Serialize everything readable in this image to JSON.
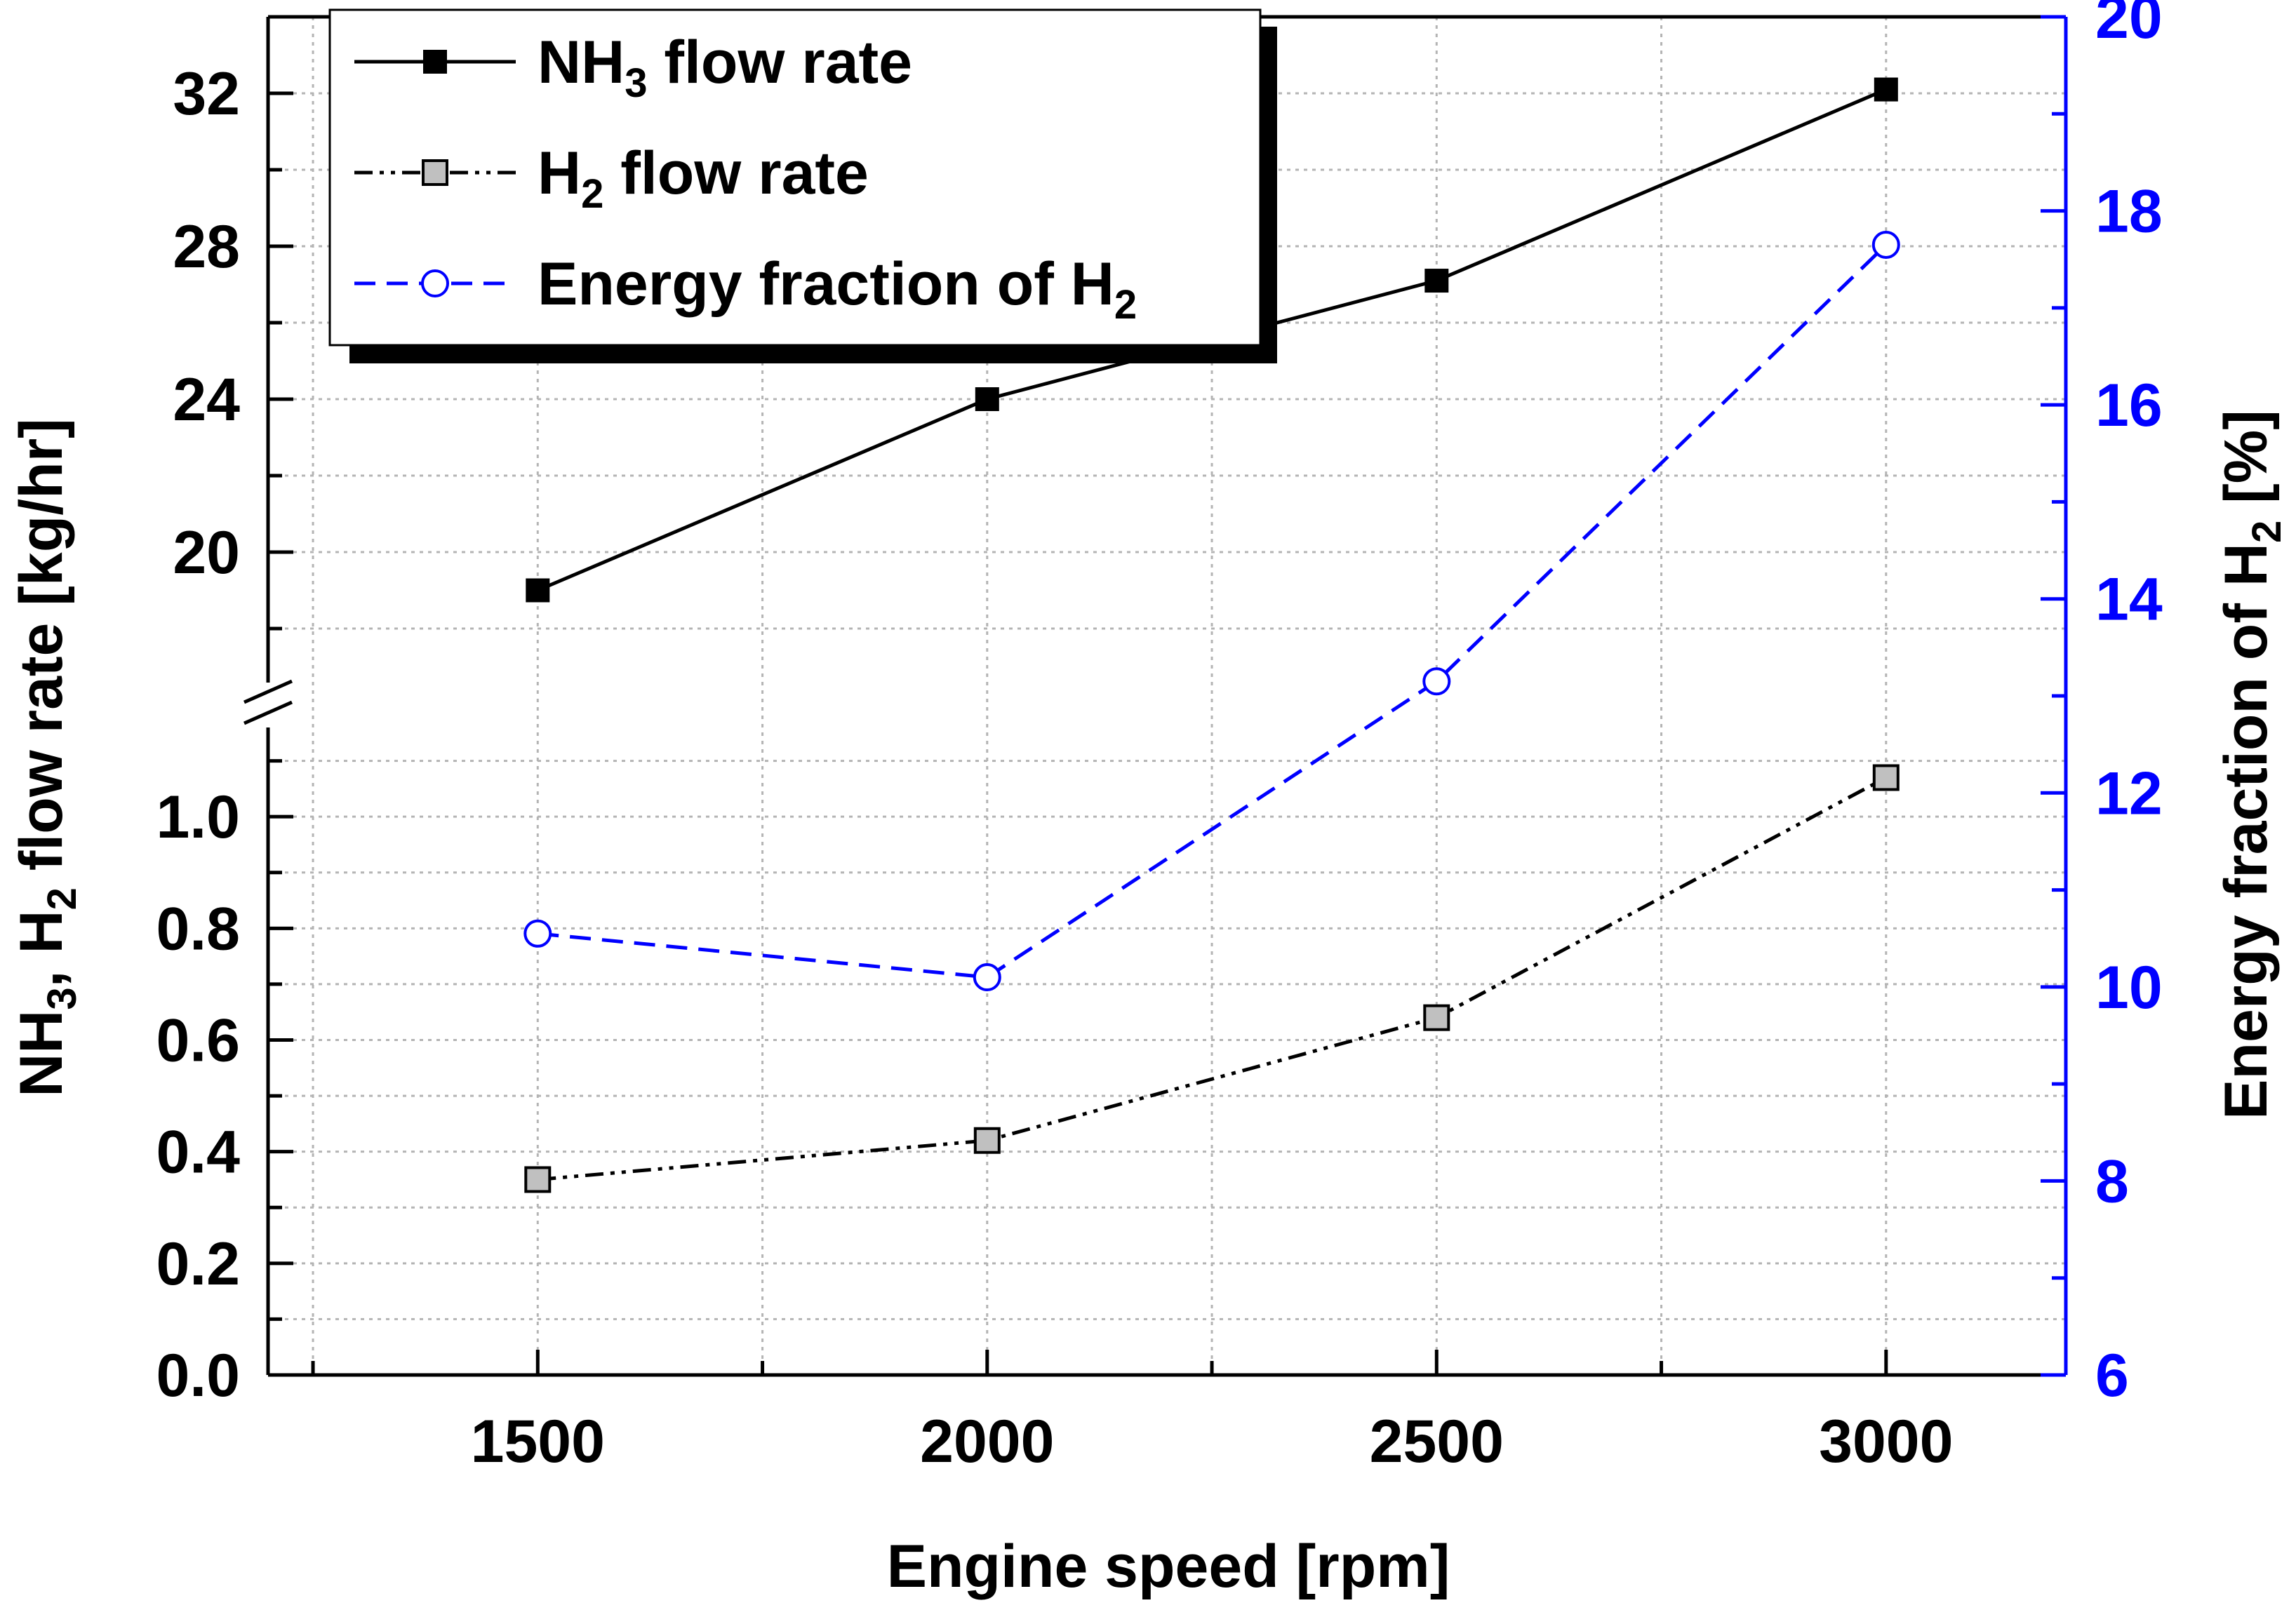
{
  "chart_data": {
    "type": "line",
    "x": [
      1500,
      2000,
      2500,
      3000
    ],
    "x_ticks": [
      "1500",
      "2000",
      "2500",
      "3000"
    ],
    "xlim": [
      1200,
      3200
    ],
    "xlabel": "Engine speed [rpm]",
    "ylabel": {
      "pre": "NH",
      "s1": "3",
      "mid": ", H",
      "s2": "2",
      "post": " flow rate [kg/hr]"
    },
    "y2label": {
      "pre": "Energy fraction of H",
      "s1": "2",
      "post": " [%]"
    },
    "y_upper": {
      "ylim": [
        16,
        34
      ],
      "ticks": [
        "20",
        "24",
        "28",
        "32"
      ]
    },
    "y_lower": {
      "ylim": [
        0,
        1.2
      ],
      "ticks": [
        "0.0",
        "0.2",
        "0.4",
        "0.6",
        "0.8",
        "1.0"
      ]
    },
    "y_right": {
      "ylim": [
        6,
        20
      ],
      "ticks": [
        "6",
        "8",
        "10",
        "12",
        "14",
        "16",
        "18",
        "20"
      ],
      "color": "#0000ff"
    },
    "series": [
      {
        "name": "NH3 flow rate",
        "axis": "upper",
        "values": [
          19.0,
          24.0,
          27.1,
          32.1
        ],
        "line": "solid",
        "color": "#000000",
        "marker": "square-filled"
      },
      {
        "name": "H2 flow rate",
        "axis": "lower",
        "values": [
          0.35,
          0.42,
          0.64,
          1.07
        ],
        "line": "dash-dot",
        "color": "#000000",
        "marker": "square-gray"
      },
      {
        "name": "Energy fraction of H2",
        "axis": "right",
        "values": [
          10.55,
          10.1,
          13.15,
          17.65
        ],
        "line": "dashed",
        "color": "#0000ff",
        "marker": "circle-open"
      }
    ],
    "legend": {
      "position": "top-left",
      "entries": [
        {
          "pre": "NH",
          "sub": "3",
          "post": " flow rate"
        },
        {
          "pre": "H",
          "sub": "2",
          "post": " flow rate"
        },
        {
          "pre": "Energy fraction of H",
          "sub": "2",
          "post": ""
        }
      ]
    },
    "grid": true,
    "axis_break": true
  }
}
